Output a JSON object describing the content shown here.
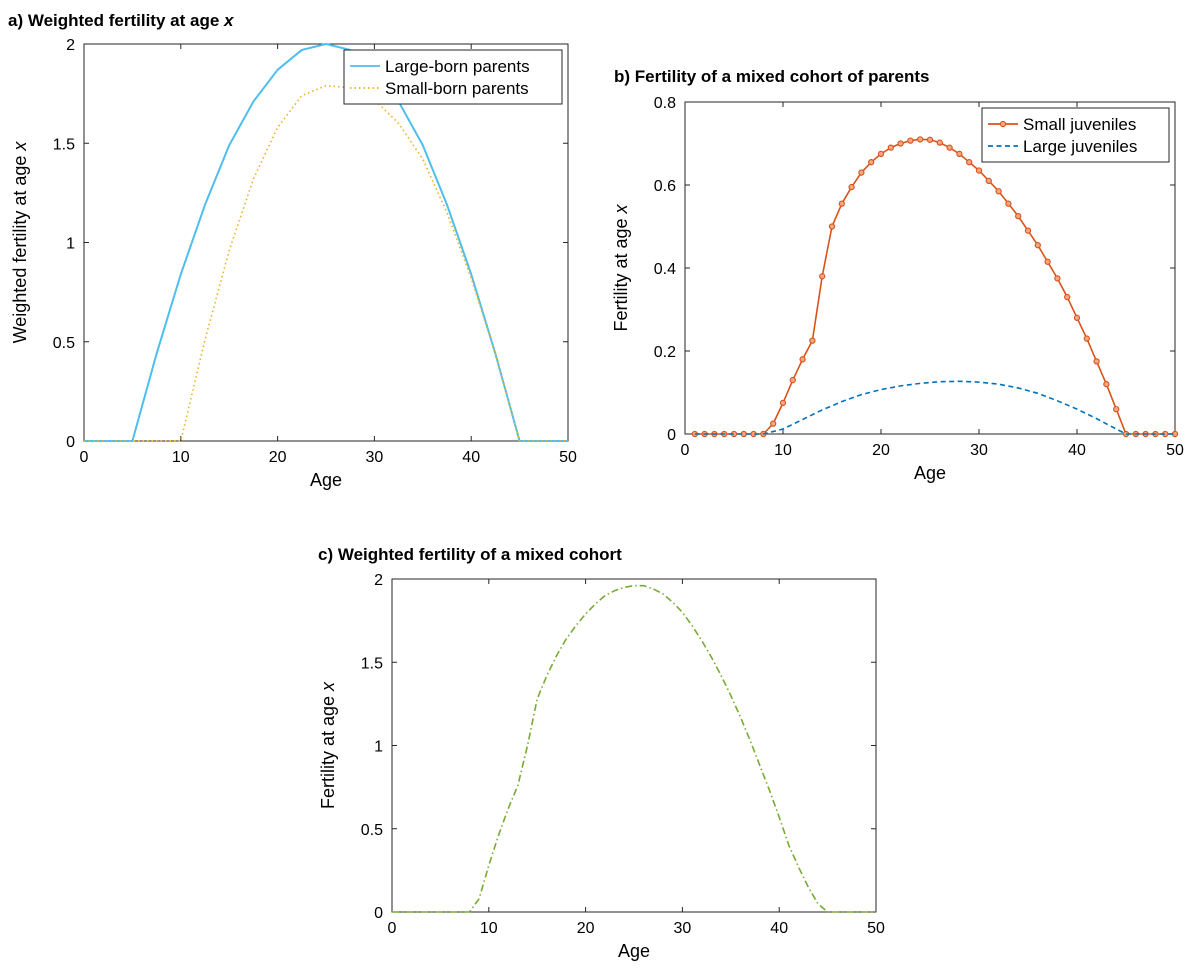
{
  "chart_data": [
    {
      "id": "a",
      "type": "line",
      "title": "a) Weighted fertility at age ",
      "title_italic": "x",
      "xlabel": "Age",
      "ylabel": "Weighted fertility at age ",
      "ylabel_italic": "x",
      "xlim": [
        0,
        50
      ],
      "ylim": [
        0,
        2
      ],
      "xticks": [
        0,
        10,
        20,
        30,
        40,
        50
      ],
      "yticks": [
        0,
        0.5,
        1,
        1.5,
        2
      ],
      "yticklabels": [
        "0",
        "0.5",
        "1",
        "1.5",
        "2"
      ],
      "grid": false,
      "legend_position": "top-right",
      "series": [
        {
          "name": "Large-born parents",
          "color": "#4DBEEE",
          "style": "solid",
          "x": [
            0,
            5,
            7.5,
            10,
            12.5,
            15,
            17.5,
            20,
            22.5,
            25,
            27.5,
            30,
            32.5,
            35,
            37.5,
            40,
            42.5,
            45,
            50
          ],
          "y": [
            0,
            0,
            0.44,
            0.84,
            1.19,
            1.49,
            1.71,
            1.87,
            1.97,
            2.0,
            1.97,
            1.87,
            1.71,
            1.49,
            1.19,
            0.84,
            0.44,
            0,
            0
          ]
        },
        {
          "name": "Small-born parents",
          "color": "#EDB120",
          "style": "dotted",
          "x": [
            0,
            10,
            12.5,
            15,
            17.5,
            20,
            22.5,
            25,
            27.5,
            30,
            32.5,
            35,
            37.5,
            40,
            42.5,
            45,
            50
          ],
          "y": [
            0,
            0,
            0.51,
            0.96,
            1.32,
            1.58,
            1.74,
            1.79,
            1.78,
            1.72,
            1.6,
            1.42,
            1.15,
            0.82,
            0.44,
            0,
            0
          ]
        }
      ]
    },
    {
      "id": "b",
      "type": "line",
      "title": "b) Fertility of a mixed cohort of parents",
      "xlabel": "Age",
      "ylabel": "Fertility at age ",
      "ylabel_italic": "x",
      "xlim": [
        0,
        50
      ],
      "ylim": [
        0,
        0.8
      ],
      "xticks": [
        0,
        10,
        20,
        30,
        40,
        50
      ],
      "yticks": [
        0,
        0.2,
        0.4,
        0.6,
        0.8
      ],
      "yticklabels": [
        "0",
        "0.2",
        "0.4",
        "0.6",
        "0.8"
      ],
      "grid": false,
      "legend_position": "top-right",
      "series": [
        {
          "name": "Small juveniles",
          "color": "#D95319",
          "style": "solid-markers",
          "x": [
            1,
            2,
            3,
            4,
            5,
            6,
            7,
            8,
            9,
            10,
            11,
            12,
            13,
            14,
            15,
            16,
            17,
            18,
            19,
            20,
            21,
            22,
            23,
            24,
            25,
            26,
            27,
            28,
            29,
            30,
            31,
            32,
            33,
            34,
            35,
            36,
            37,
            38,
            39,
            40,
            41,
            42,
            43,
            44,
            45,
            46,
            47,
            48,
            49,
            50
          ],
          "y": [
            0,
            0,
            0,
            0,
            0,
            0,
            0,
            0,
            0.025,
            0.075,
            0.13,
            0.18,
            0.225,
            0.38,
            0.5,
            0.555,
            0.595,
            0.63,
            0.655,
            0.675,
            0.69,
            0.7,
            0.707,
            0.71,
            0.709,
            0.702,
            0.69,
            0.675,
            0.655,
            0.635,
            0.61,
            0.585,
            0.555,
            0.525,
            0.49,
            0.455,
            0.415,
            0.375,
            0.33,
            0.28,
            0.23,
            0.175,
            0.12,
            0.06,
            0,
            0,
            0,
            0,
            0,
            0
          ]
        },
        {
          "name": "Large juveniles",
          "color": "#0072BD",
          "style": "dashed",
          "x": [
            1,
            8,
            10,
            12,
            14,
            16,
            18,
            20,
            22,
            24,
            26,
            28,
            30,
            32,
            34,
            36,
            38,
            40,
            42,
            44,
            45,
            50
          ],
          "y": [
            0,
            0,
            0.012,
            0.035,
            0.058,
            0.078,
            0.095,
            0.107,
            0.116,
            0.122,
            0.126,
            0.127,
            0.125,
            0.12,
            0.111,
            0.098,
            0.08,
            0.06,
            0.037,
            0.012,
            0,
            0
          ]
        }
      ]
    },
    {
      "id": "c",
      "type": "line",
      "title": "c) Weighted fertility of a mixed cohort",
      "xlabel": "Age",
      "ylabel": "Fertility at age ",
      "ylabel_italic": "x",
      "xlim": [
        0,
        50
      ],
      "ylim": [
        0,
        2
      ],
      "xticks": [
        0,
        10,
        20,
        30,
        40,
        50
      ],
      "yticks": [
        0,
        0.5,
        1,
        1.5,
        2
      ],
      "yticklabels": [
        "0",
        "0.5",
        "1",
        "1.5",
        "2"
      ],
      "grid": false,
      "series": [
        {
          "color": "#77AC30",
          "style": "dashdot",
          "x": [
            0,
            8,
            9,
            10,
            11,
            12,
            13,
            14,
            15,
            16,
            17,
            18,
            19,
            20,
            21,
            22,
            23,
            24,
            25,
            26,
            27,
            28,
            29,
            30,
            31,
            32,
            33,
            34,
            35,
            36,
            37,
            38,
            39,
            40,
            41,
            42,
            43,
            44,
            45,
            50
          ],
          "y": [
            0,
            0,
            0.08,
            0.28,
            0.46,
            0.62,
            0.76,
            1.0,
            1.28,
            1.42,
            1.54,
            1.64,
            1.72,
            1.79,
            1.85,
            1.9,
            1.93,
            1.95,
            1.96,
            1.96,
            1.94,
            1.91,
            1.86,
            1.8,
            1.72,
            1.63,
            1.53,
            1.42,
            1.3,
            1.17,
            1.03,
            0.88,
            0.73,
            0.57,
            0.4,
            0.27,
            0.15,
            0.05,
            0,
            0
          ]
        }
      ]
    }
  ]
}
